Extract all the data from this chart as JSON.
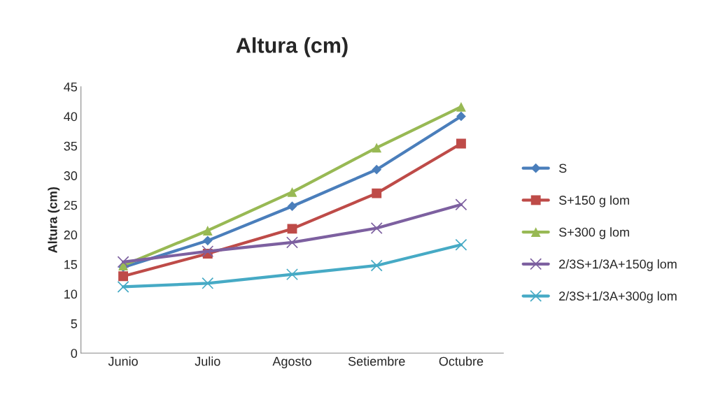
{
  "chart_data": {
    "type": "line",
    "title": "Altura (cm)",
    "ylabel": "Altura (cm)",
    "categories": [
      "Junio",
      "Julio",
      "Agosto",
      "Setiembre",
      "Octubre"
    ],
    "ylim": [
      0,
      45
    ],
    "yticks": [
      0,
      5,
      10,
      15,
      20,
      25,
      30,
      35,
      40,
      45
    ],
    "grid": false,
    "legend": "right",
    "series": [
      {
        "name": "S",
        "color": "#4a7ebb",
        "marker": "diamond",
        "values": [
          14.5,
          19.0,
          24.8,
          31.0,
          40.0
        ]
      },
      {
        "name": "S+150 g lom",
        "color": "#be4b48",
        "marker": "square",
        "values": [
          13.0,
          16.8,
          21.0,
          27.0,
          35.4
        ]
      },
      {
        "name": "S+300 g lom",
        "color": "#98b954",
        "marker": "triangle",
        "values": [
          14.8,
          20.7,
          27.2,
          34.7,
          41.6
        ]
      },
      {
        "name": "2/3S+1/3A+150g lom",
        "color": "#7d60a0",
        "marker": "cross",
        "values": [
          15.4,
          17.2,
          18.7,
          21.1,
          25.1
        ]
      },
      {
        "name": "2/3S+1/3A+300g lom",
        "color": "#46aac5",
        "marker": "cross",
        "values": [
          11.2,
          11.8,
          13.3,
          14.8,
          18.3
        ]
      }
    ]
  }
}
